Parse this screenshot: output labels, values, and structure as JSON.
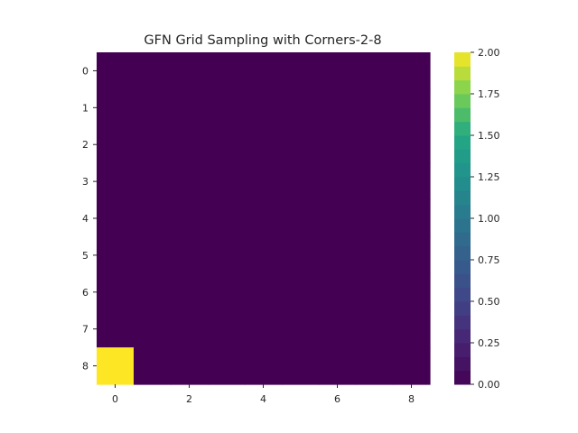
{
  "chart_data": {
    "type": "heatmap",
    "title": "GFN Grid Sampling with Corners-2-8",
    "rows": 9,
    "cols": 9,
    "x_ticks": [
      0,
      2,
      4,
      6,
      8
    ],
    "y_ticks": [
      0,
      1,
      2,
      3,
      4,
      5,
      6,
      7,
      8
    ],
    "x_tick_labels": [
      "0",
      "2",
      "4",
      "6",
      "8"
    ],
    "y_tick_labels": [
      "0",
      "1",
      "2",
      "3",
      "4",
      "5",
      "6",
      "7",
      "8"
    ],
    "values": [
      [
        0,
        0,
        0,
        0,
        0,
        0,
        0,
        0,
        0
      ],
      [
        0,
        0,
        0,
        0,
        0,
        0,
        0,
        0,
        0
      ],
      [
        0,
        0,
        0,
        0,
        0,
        0,
        0,
        0,
        0
      ],
      [
        0,
        0,
        0,
        0,
        0,
        0,
        0,
        0,
        0
      ],
      [
        0,
        0,
        0,
        0,
        0,
        0,
        0,
        0,
        0
      ],
      [
        0,
        0,
        0,
        0,
        0,
        0,
        0,
        0,
        0
      ],
      [
        0,
        0,
        0,
        0,
        0,
        0,
        0,
        0,
        0
      ],
      [
        0,
        0,
        0,
        0,
        0,
        0,
        0,
        0,
        0
      ],
      [
        2,
        0,
        0,
        0,
        0,
        0,
        0,
        0,
        0
      ]
    ],
    "colormap": "viridis",
    "vmin": 0,
    "vmax": 2,
    "colorbar_ticks": [
      0.0,
      0.25,
      0.5,
      0.75,
      1.0,
      1.25,
      1.5,
      1.75,
      2.0
    ],
    "colorbar_tick_labels": [
      "0.00",
      "0.25",
      "0.50",
      "0.75",
      "1.00",
      "1.25",
      "1.50",
      "1.75",
      "2.00"
    ],
    "colorbar_levels": 24,
    "grid": false
  }
}
